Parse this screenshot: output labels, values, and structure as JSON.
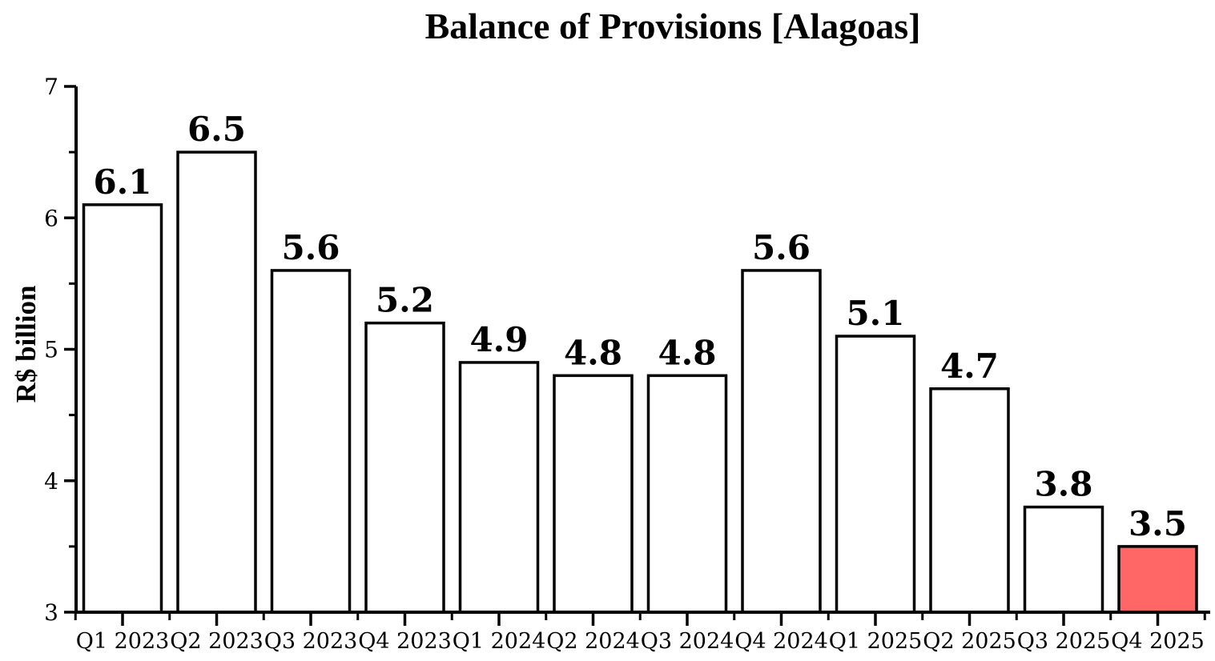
{
  "page": {
    "background_color": "#ffffff",
    "text_color": "#000000"
  },
  "chart_data": {
    "type": "bar",
    "title": "Balance of Provisions [Alagoas]",
    "xlabel": "",
    "ylabel": "R$ billion",
    "categories": [
      "Q1 2023",
      "Q2 2023",
      "Q3 2023",
      "Q4 2023",
      "Q1 2024",
      "Q2 2024",
      "Q3 2024",
      "Q4 2024",
      "Q1 2025",
      "Q2 2025",
      "Q3 2025",
      "Q4 2025"
    ],
    "values": [
      6.1,
      6.5,
      5.6,
      5.2,
      4.9,
      4.8,
      4.8,
      5.6,
      5.1,
      4.7,
      3.8,
      3.5
    ],
    "value_labels": [
      "6.1",
      "6.5",
      "5.6",
      "5.2",
      "4.9",
      "4.8",
      "4.8",
      "5.6",
      "5.1",
      "4.7",
      "3.8",
      "3.5"
    ],
    "ylim": [
      3,
      7
    ],
    "y_major_ticks": [
      3,
      4,
      5,
      6,
      7
    ],
    "y_minor_ticks": [
      3.5,
      4.5,
      5.5,
      6.5
    ],
    "grid": false,
    "legend": false,
    "bar_fill_default": "#ffffff",
    "bar_fill_highlight": "#FF6666",
    "highlight_index": 11,
    "bar_stroke_color": "#000000",
    "axis_color": "#000000"
  }
}
